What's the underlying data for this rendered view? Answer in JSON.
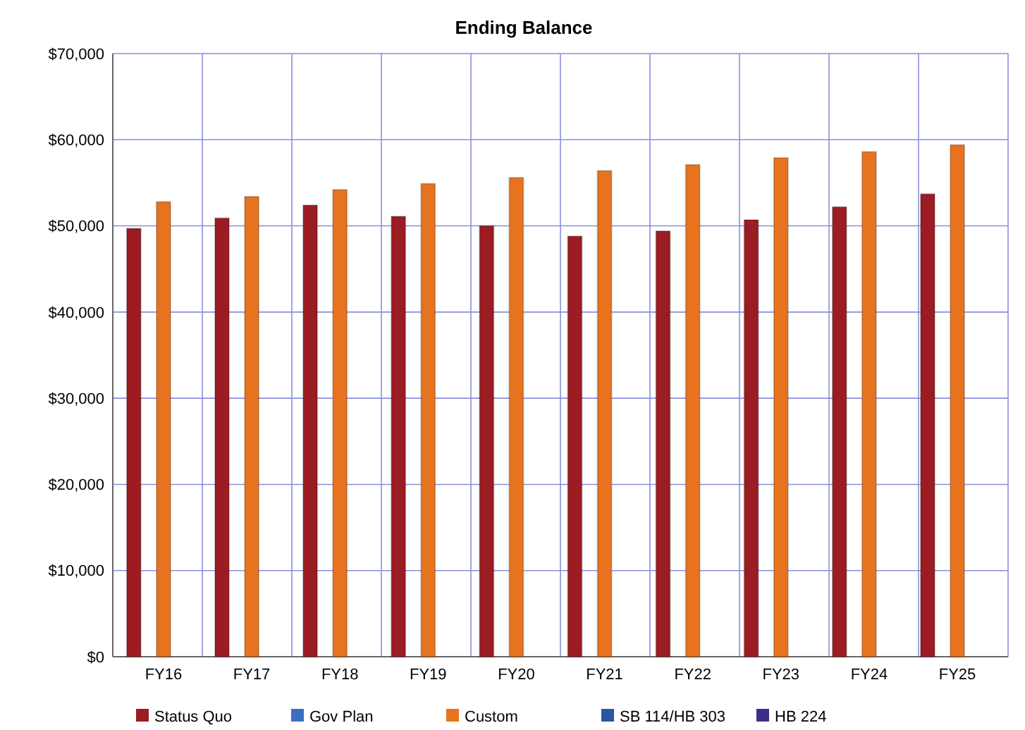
{
  "chart_data": {
    "type": "bar",
    "title": "Ending Balance",
    "categories": [
      "FY16",
      "FY17",
      "FY18",
      "FY19",
      "FY20",
      "FY21",
      "FY22",
      "FY23",
      "FY24",
      "FY25"
    ],
    "series": [
      {
        "name": "Status Quo",
        "color": "#9b1c22",
        "values": [
          49700,
          50900,
          52400,
          51100,
          50000,
          48800,
          49400,
          50700,
          52200,
          53700
        ]
      },
      {
        "name": "Gov Plan",
        "color": "#3a6fc4",
        "values": [
          null,
          null,
          null,
          null,
          null,
          null,
          null,
          null,
          null,
          null
        ]
      },
      {
        "name": "Custom",
        "color": "#e8731e",
        "values": [
          52800,
          53400,
          54200,
          54900,
          55600,
          56400,
          57100,
          57900,
          58600,
          59400
        ]
      },
      {
        "name": "SB 114/HB 303",
        "color": "#2d55a0",
        "values": [
          null,
          null,
          null,
          null,
          null,
          null,
          null,
          null,
          null,
          null
        ]
      },
      {
        "name": "HB 224",
        "color": "#3c2e8a",
        "values": [
          null,
          null,
          null,
          null,
          null,
          null,
          null,
          null,
          null,
          null
        ]
      }
    ],
    "ylim": [
      0,
      70000
    ],
    "yticks": [
      {
        "value": 0,
        "label": "$0"
      },
      {
        "value": 10000,
        "label": "$10,000"
      },
      {
        "value": 20000,
        "label": "$20,000"
      },
      {
        "value": 30000,
        "label": "$30,000"
      },
      {
        "value": 40000,
        "label": "$40,000"
      },
      {
        "value": 50000,
        "label": "$50,000"
      },
      {
        "value": 60000,
        "label": "$60,000"
      },
      {
        "value": 70000,
        "label": "$70,000"
      }
    ],
    "grid": true,
    "legend": "bottom"
  }
}
